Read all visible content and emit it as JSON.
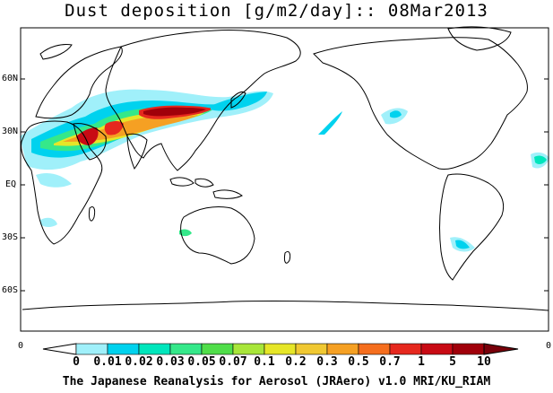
{
  "title": "Dust deposition [g/m2/day]:: 08Mar2013",
  "lat_labels": [
    "60N",
    "30N",
    "EQ",
    "30S",
    "60S"
  ],
  "edge_labels": {
    "left": "0",
    "right": "0"
  },
  "colorbar": {
    "labels": [
      "0",
      "0.01",
      "0.02",
      "0.03",
      "0.05",
      "0.07",
      "0.1",
      "0.2",
      "0.3",
      "0.5",
      "0.7",
      "1",
      "5",
      "10"
    ],
    "colors": [
      "#ffffff",
      "#a0f0fa",
      "#00d2ee",
      "#00e6bc",
      "#35e88a",
      "#50de4a",
      "#a8e63a",
      "#e6e628",
      "#f0c832",
      "#f5a023",
      "#f56e1e",
      "#e6281e",
      "#c80a14",
      "#a0000a",
      "#78000a"
    ]
  },
  "footer": "The Japanese Reanalysis for Aerosol (JRAero) v1.0 MRI/KU_RIAM"
}
